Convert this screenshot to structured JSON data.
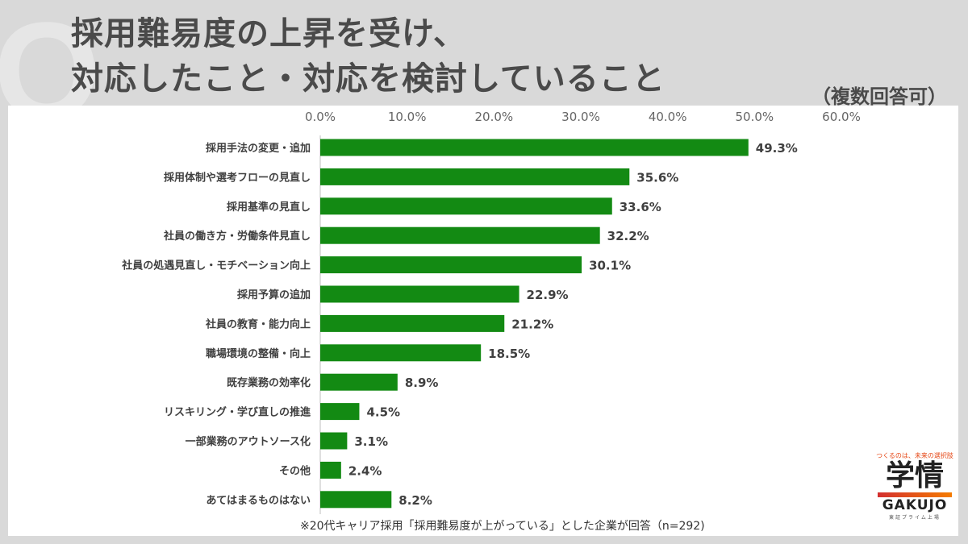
{
  "title_line1": "採用難易度の上昇を受け、",
  "title_line2": "対応したこと・対応を検討していること",
  "multi_note": "（複数回答可）",
  "footnote": "※20代キャリア採用「採用難易度が上がっている」とした企業が回答（n=292)",
  "logo": {
    "tagline": "つくるのは、未来の選択肢",
    "kanji": "学情",
    "en": "GAKUJO",
    "sub": "東証プライム上場"
  },
  "bar_color": "#138a13",
  "chart_data": {
    "type": "bar",
    "orientation": "horizontal",
    "xlim": [
      0,
      60
    ],
    "ticks": [
      "0.0%",
      "10.0%",
      "20.0%",
      "30.0%",
      "40.0%",
      "50.0%",
      "60.0%"
    ],
    "tick_values": [
      0,
      10,
      20,
      30,
      40,
      50,
      60
    ],
    "categories": [
      "採用手法の変更・追加",
      "採用体制や選考フローの見直し",
      "採用基準の見直し",
      "社員の働き方・労働条件見直し",
      "社員の処遇見直し・モチベーション向上",
      "採用予算の追加",
      "社員の教育・能力向上",
      "職場環境の整備・向上",
      "既存業務の効率化",
      "リスキリング・学び直しの推進",
      "一部業務のアウトソース化",
      "その他",
      "あてはまるものはない"
    ],
    "values": [
      49.3,
      35.6,
      33.6,
      32.2,
      30.1,
      22.9,
      21.2,
      18.5,
      8.9,
      4.5,
      3.1,
      2.4,
      8.2
    ],
    "labels": [
      "49.3%",
      "35.6%",
      "33.6%",
      "32.2%",
      "30.1%",
      "22.9%",
      "21.2%",
      "18.5%",
      "8.9%",
      "4.5%",
      "3.1%",
      "2.4%",
      "8.2%"
    ]
  }
}
